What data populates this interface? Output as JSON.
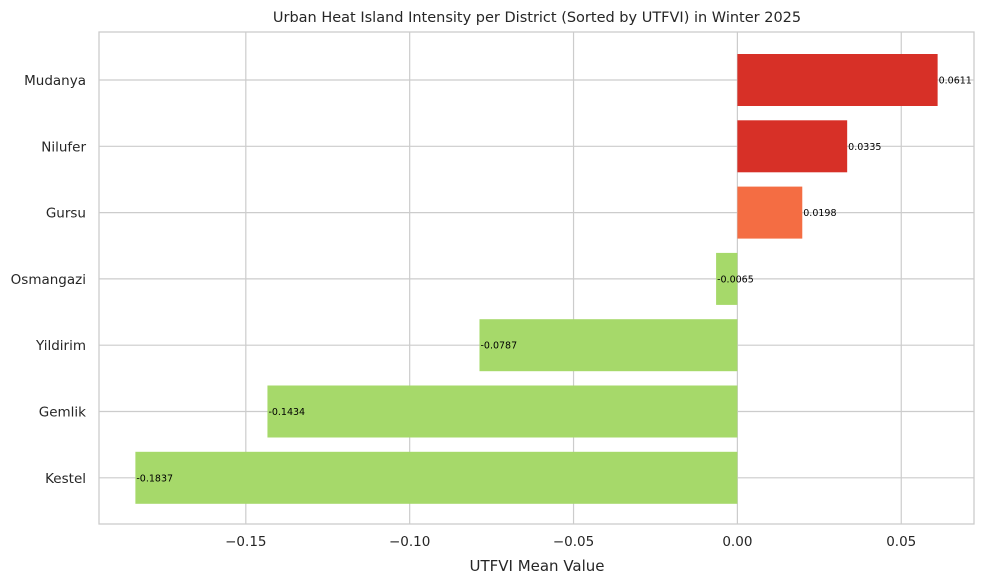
{
  "chart_data": {
    "type": "bar",
    "orientation": "horizontal",
    "title": "Urban Heat Island Intensity per District (Sorted by UTFVI) in Winter 2025",
    "xlabel": "UTFVI Mean Value",
    "ylabel": "",
    "xlim": [
      -0.1948,
      0.0722
    ],
    "xticks": [
      -0.15,
      -0.1,
      -0.05,
      0.0,
      0.05
    ],
    "xtick_labels": [
      "−0.15",
      "−0.10",
      "−0.05",
      "0.00",
      "0.05"
    ],
    "grid": true,
    "categories": [
      "Mudanya",
      "Nilufer",
      "Gursu",
      "Osmangazi",
      "Yildirim",
      "Gemlik",
      "Kestel"
    ],
    "values": [
      0.0611,
      0.0335,
      0.0198,
      -0.0065,
      -0.0787,
      -0.1434,
      -0.1837
    ],
    "value_labels": [
      "0.0611",
      "0.0335",
      "0.0198",
      "-0.0065",
      "-0.0787",
      "-0.1434",
      "-0.1837"
    ],
    "colors": [
      "#d73027",
      "#d73027",
      "#f46d43",
      "#a6d96a",
      "#a6d96a",
      "#a6d96a",
      "#a6d96a"
    ]
  }
}
